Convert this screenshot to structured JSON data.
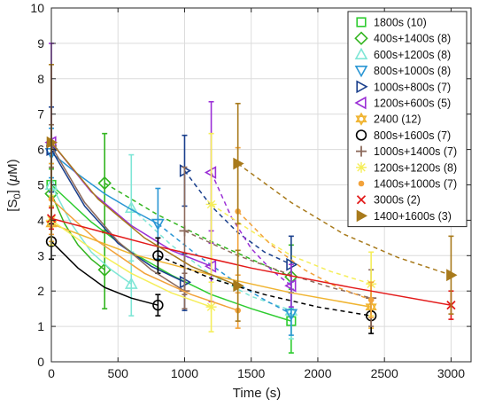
{
  "chart_data": {
    "type": "line",
    "title": "",
    "xlabel": "Time (s)",
    "ylabel": "[S",
    "ylabel_sub": "0",
    "ylabel_rest": "] (",
    "ylabel_mu": "μ",
    "ylabel_end": "M)",
    "xlim": [
      0,
      3150
    ],
    "ylim": [
      0,
      10
    ],
    "xticks": [
      "0",
      "500",
      "1000",
      "1500",
      "2000",
      "2500",
      "3000"
    ],
    "yticks": [
      "0",
      "1",
      "2",
      "3",
      "4",
      "5",
      "6",
      "7",
      "8",
      "9",
      "10"
    ],
    "grid": true,
    "legend_position": "top-right",
    "series": [
      {
        "name": "1800s (10)",
        "color": "#2ecc30",
        "marker": "square",
        "points": [
          {
            "x": 0,
            "y": 5.0,
            "err": 0.6
          },
          {
            "x": 1800,
            "y": 1.15,
            "err": 0.9
          }
        ],
        "segments": [
          {
            "style": "solid",
            "pts": [
              [
                0,
                5.0
              ],
              [
                300,
                3.95
              ],
              [
                600,
                3.1
              ],
              [
                900,
                2.45
              ],
              [
                1200,
                1.9
              ],
              [
                1500,
                1.5
              ],
              [
                1800,
                1.15
              ]
            ]
          }
        ]
      },
      {
        "name": "400s+1400s (8)",
        "color": "#33b520",
        "marker": "diamond",
        "points": [
          {
            "x": 0,
            "y": 4.75,
            "err": 0.7
          },
          {
            "x": 400,
            "y": 2.6,
            "err": 1.1
          },
          {
            "x": 400,
            "y": 5.05,
            "err": 1.4
          },
          {
            "x": 1800,
            "y": 2.4,
            "err": 0.9
          }
        ],
        "segments": [
          {
            "style": "solid",
            "pts": [
              [
                0,
                4.75
              ],
              [
                100,
                3.9
              ],
              [
                200,
                3.3
              ],
              [
                300,
                2.9
              ],
              [
                400,
                2.6
              ]
            ]
          },
          {
            "style": "dashed",
            "pts": [
              [
                400,
                5.05
              ],
              [
                800,
                4.15
              ],
              [
                1200,
                3.4
              ],
              [
                1500,
                2.9
              ],
              [
                1800,
                2.4
              ]
            ]
          }
        ]
      },
      {
        "name": "600s+1200s (8)",
        "color": "#7fe6d6",
        "marker": "triangle-up",
        "points": [
          {
            "x": 0,
            "y": 5.0,
            "err": 0.6
          },
          {
            "x": 600,
            "y": 2.2,
            "err": 0.9
          },
          {
            "x": 600,
            "y": 4.35,
            "err": 1.5
          },
          {
            "x": 1800,
            "y": 1.45,
            "err": 0.8
          }
        ],
        "segments": [
          {
            "style": "solid",
            "pts": [
              [
                0,
                5.0
              ],
              [
                150,
                3.9
              ],
              [
                300,
                3.1
              ],
              [
                450,
                2.6
              ],
              [
                600,
                2.2
              ]
            ]
          },
          {
            "style": "dashed",
            "pts": [
              [
                600,
                4.35
              ],
              [
                900,
                3.3
              ],
              [
                1200,
                2.45
              ],
              [
                1500,
                1.85
              ],
              [
                1800,
                1.45
              ]
            ]
          }
        ]
      },
      {
        "name": "800s+1000s (8)",
        "color": "#2a96d4",
        "marker": "triangle-down",
        "points": [
          {
            "x": 0,
            "y": 5.9,
            "err": 0.7
          },
          {
            "x": 800,
            "y": 3.9,
            "err": 1.0
          },
          {
            "x": 1800,
            "y": 1.35,
            "err": 0.6
          }
        ],
        "segments": [
          {
            "style": "solid",
            "pts": [
              [
                0,
                5.9
              ],
              [
                200,
                5.3
              ],
              [
                400,
                4.75
              ],
              [
                600,
                4.3
              ],
              [
                800,
                3.9
              ]
            ]
          },
          {
            "style": "dashed",
            "pts": [
              [
                800,
                3.9
              ],
              [
                1100,
                3.0
              ],
              [
                1400,
                2.2
              ],
              [
                1600,
                1.75
              ],
              [
                1800,
                1.35
              ]
            ]
          }
        ]
      },
      {
        "name": "1000s+800s (7)",
        "color": "#1a3f8c",
        "marker": "triangle-right",
        "points": [
          {
            "x": 0,
            "y": 6.0,
            "err": 1.2
          },
          {
            "x": 1000,
            "y": 2.25,
            "err": 0.8
          },
          {
            "x": 1000,
            "y": 5.4,
            "err": 1.0
          },
          {
            "x": 1800,
            "y": 2.75,
            "err": 0.8
          }
        ],
        "segments": [
          {
            "style": "solid",
            "pts": [
              [
                0,
                6.0
              ],
              [
                250,
                4.4
              ],
              [
                500,
                3.35
              ],
              [
                750,
                2.7
              ],
              [
                1000,
                2.25
              ]
            ]
          },
          {
            "style": "dashed",
            "pts": [
              [
                1000,
                5.4
              ],
              [
                1200,
                4.4
              ],
              [
                1400,
                3.65
              ],
              [
                1600,
                3.1
              ],
              [
                1800,
                2.75
              ]
            ]
          }
        ]
      },
      {
        "name": "1200s+600s (5)",
        "color": "#9b2fd6",
        "marker": "triangle-left",
        "points": [
          {
            "x": 0,
            "y": 6.2,
            "err": 2.8
          },
          {
            "x": 1200,
            "y": 2.7,
            "err": 1.0
          },
          {
            "x": 1200,
            "y": 5.35,
            "err": 2.0
          },
          {
            "x": 1800,
            "y": 2.15,
            "err": 0.6
          }
        ],
        "segments": [
          {
            "style": "solid",
            "pts": [
              [
                0,
                6.2
              ],
              [
                300,
                4.8
              ],
              [
                600,
                3.85
              ],
              [
                900,
                3.15
              ],
              [
                1200,
                2.7
              ]
            ]
          },
          {
            "style": "dashed",
            "pts": [
              [
                1200,
                5.35
              ],
              [
                1350,
                4.1
              ],
              [
                1500,
                3.2
              ],
              [
                1650,
                2.6
              ],
              [
                1800,
                2.15
              ]
            ]
          }
        ]
      },
      {
        "name": "2400 (12)",
        "color": "#f0b431",
        "marker": "hexagram",
        "points": [
          {
            "x": 0,
            "y": 3.9,
            "err": 0.5
          },
          {
            "x": 2400,
            "y": 1.55,
            "err": 0.6
          }
        ],
        "segments": [
          {
            "style": "solid",
            "pts": [
              [
                0,
                3.9
              ],
              [
                600,
                3.05
              ],
              [
                1200,
                2.45
              ],
              [
                1800,
                1.95
              ],
              [
                2400,
                1.55
              ]
            ]
          }
        ]
      },
      {
        "name": "800s+1600s (7)",
        "color": "#000000",
        "marker": "circle",
        "points": [
          {
            "x": 0,
            "y": 3.4,
            "err": 0.5
          },
          {
            "x": 800,
            "y": 1.6,
            "err": 0.3
          },
          {
            "x": 800,
            "y": 3.0,
            "err": 0.5
          },
          {
            "x": 2400,
            "y": 1.3,
            "err": 0.5
          }
        ],
        "segments": [
          {
            "style": "solid",
            "pts": [
              [
                0,
                3.4
              ],
              [
                200,
                2.65
              ],
              [
                400,
                2.1
              ],
              [
                600,
                1.8
              ],
              [
                800,
                1.6
              ]
            ]
          },
          {
            "style": "dashed",
            "pts": [
              [
                800,
                3.0
              ],
              [
                1200,
                2.35
              ],
              [
                1600,
                1.9
              ],
              [
                2000,
                1.55
              ],
              [
                2400,
                1.3
              ]
            ]
          }
        ]
      },
      {
        "name": "1000s+1400s (7)",
        "color": "#8c6a5c",
        "marker": "plus",
        "points": [
          {
            "x": 0,
            "y": 6.1,
            "err": 0.6
          },
          {
            "x": 1000,
            "y": 2.0,
            "err": 0.5
          },
          {
            "x": 1000,
            "y": 3.7,
            "err": 1.8
          },
          {
            "x": 2400,
            "y": 1.8,
            "err": 0.8
          }
        ],
        "segments": [
          {
            "style": "solid",
            "pts": [
              [
                0,
                6.1
              ],
              [
                250,
                4.5
              ],
              [
                500,
                3.4
              ],
              [
                750,
                2.6
              ],
              [
                1000,
                2.0
              ]
            ]
          },
          {
            "style": "dashed",
            "pts": [
              [
                1000,
                3.7
              ],
              [
                1400,
                3.0
              ],
              [
                1800,
                2.45
              ],
              [
                2100,
                2.1
              ],
              [
                2400,
                1.8
              ]
            ]
          }
        ]
      },
      {
        "name": "1200s+1200s (8)",
        "color": "#f5ee5a",
        "marker": "asterisk",
        "points": [
          {
            "x": 0,
            "y": 4.0,
            "err": 0.7
          },
          {
            "x": 1200,
            "y": 1.55,
            "err": 0.7
          },
          {
            "x": 1200,
            "y": 4.45,
            "err": 2.0
          },
          {
            "x": 2400,
            "y": 2.2,
            "err": 0.9
          }
        ],
        "segments": [
          {
            "style": "solid",
            "pts": [
              [
                0,
                4.0
              ],
              [
                300,
                3.2
              ],
              [
                600,
                2.5
              ],
              [
                900,
                1.95
              ],
              [
                1200,
                1.55
              ]
            ]
          },
          {
            "style": "dashed",
            "pts": [
              [
                1200,
                4.45
              ],
              [
                1500,
                3.7
              ],
              [
                1800,
                3.0
              ],
              [
                2100,
                2.55
              ],
              [
                2400,
                2.2
              ]
            ]
          }
        ]
      },
      {
        "name": "1400s+1000s (7)",
        "color": "#f2a23a",
        "marker": "dot",
        "points": [
          {
            "x": 0,
            "y": 4.6,
            "err": 1.0
          },
          {
            "x": 1400,
            "y": 1.45,
            "err": 0.5
          },
          {
            "x": 1400,
            "y": 4.25,
            "err": 1.8
          },
          {
            "x": 2400,
            "y": 1.75,
            "err": 0.5
          }
        ],
        "segments": [
          {
            "style": "solid",
            "pts": [
              [
                0,
                4.6
              ],
              [
                350,
                3.4
              ],
              [
                700,
                2.5
              ],
              [
                1050,
                1.9
              ],
              [
                1400,
                1.45
              ]
            ]
          },
          {
            "style": "dashed",
            "pts": [
              [
                1400,
                4.25
              ],
              [
                1650,
                3.3
              ],
              [
                1900,
                2.6
              ],
              [
                2150,
                2.1
              ],
              [
                2400,
                1.75
              ]
            ]
          }
        ]
      },
      {
        "name": "3000s (2)",
        "color": "#e31a1a",
        "marker": "cross",
        "points": [
          {
            "x": 0,
            "y": 4.05,
            "err": 0.3
          },
          {
            "x": 3000,
            "y": 1.6,
            "err": 0.4
          }
        ],
        "segments": [
          {
            "style": "solid",
            "pts": [
              [
                0,
                4.05
              ],
              [
                750,
                3.3
              ],
              [
                1500,
                2.65
              ],
              [
                2250,
                2.1
              ],
              [
                3000,
                1.6
              ]
            ]
          }
        ]
      },
      {
        "name": "1400+1600s (3)",
        "color": "#a87a1c",
        "marker": "triangle-right-filled",
        "points": [
          {
            "x": 0,
            "y": 6.2,
            "err": 2.2
          },
          {
            "x": 1400,
            "y": 2.15,
            "err": 1.0
          },
          {
            "x": 1400,
            "y": 5.6,
            "err": 1.7
          },
          {
            "x": 3000,
            "y": 2.45,
            "err": 1.1
          }
        ],
        "segments": [
          {
            "style": "solid",
            "pts": [
              [
                0,
                6.2
              ],
              [
                350,
                4.6
              ],
              [
                700,
                3.5
              ],
              [
                1050,
                2.7
              ],
              [
                1400,
                2.15
              ]
            ]
          },
          {
            "style": "dashed",
            "pts": [
              [
                1400,
                5.6
              ],
              [
                1800,
                4.5
              ],
              [
                2200,
                3.6
              ],
              [
                2600,
                2.95
              ],
              [
                3000,
                2.45
              ]
            ]
          }
        ]
      }
    ]
  }
}
